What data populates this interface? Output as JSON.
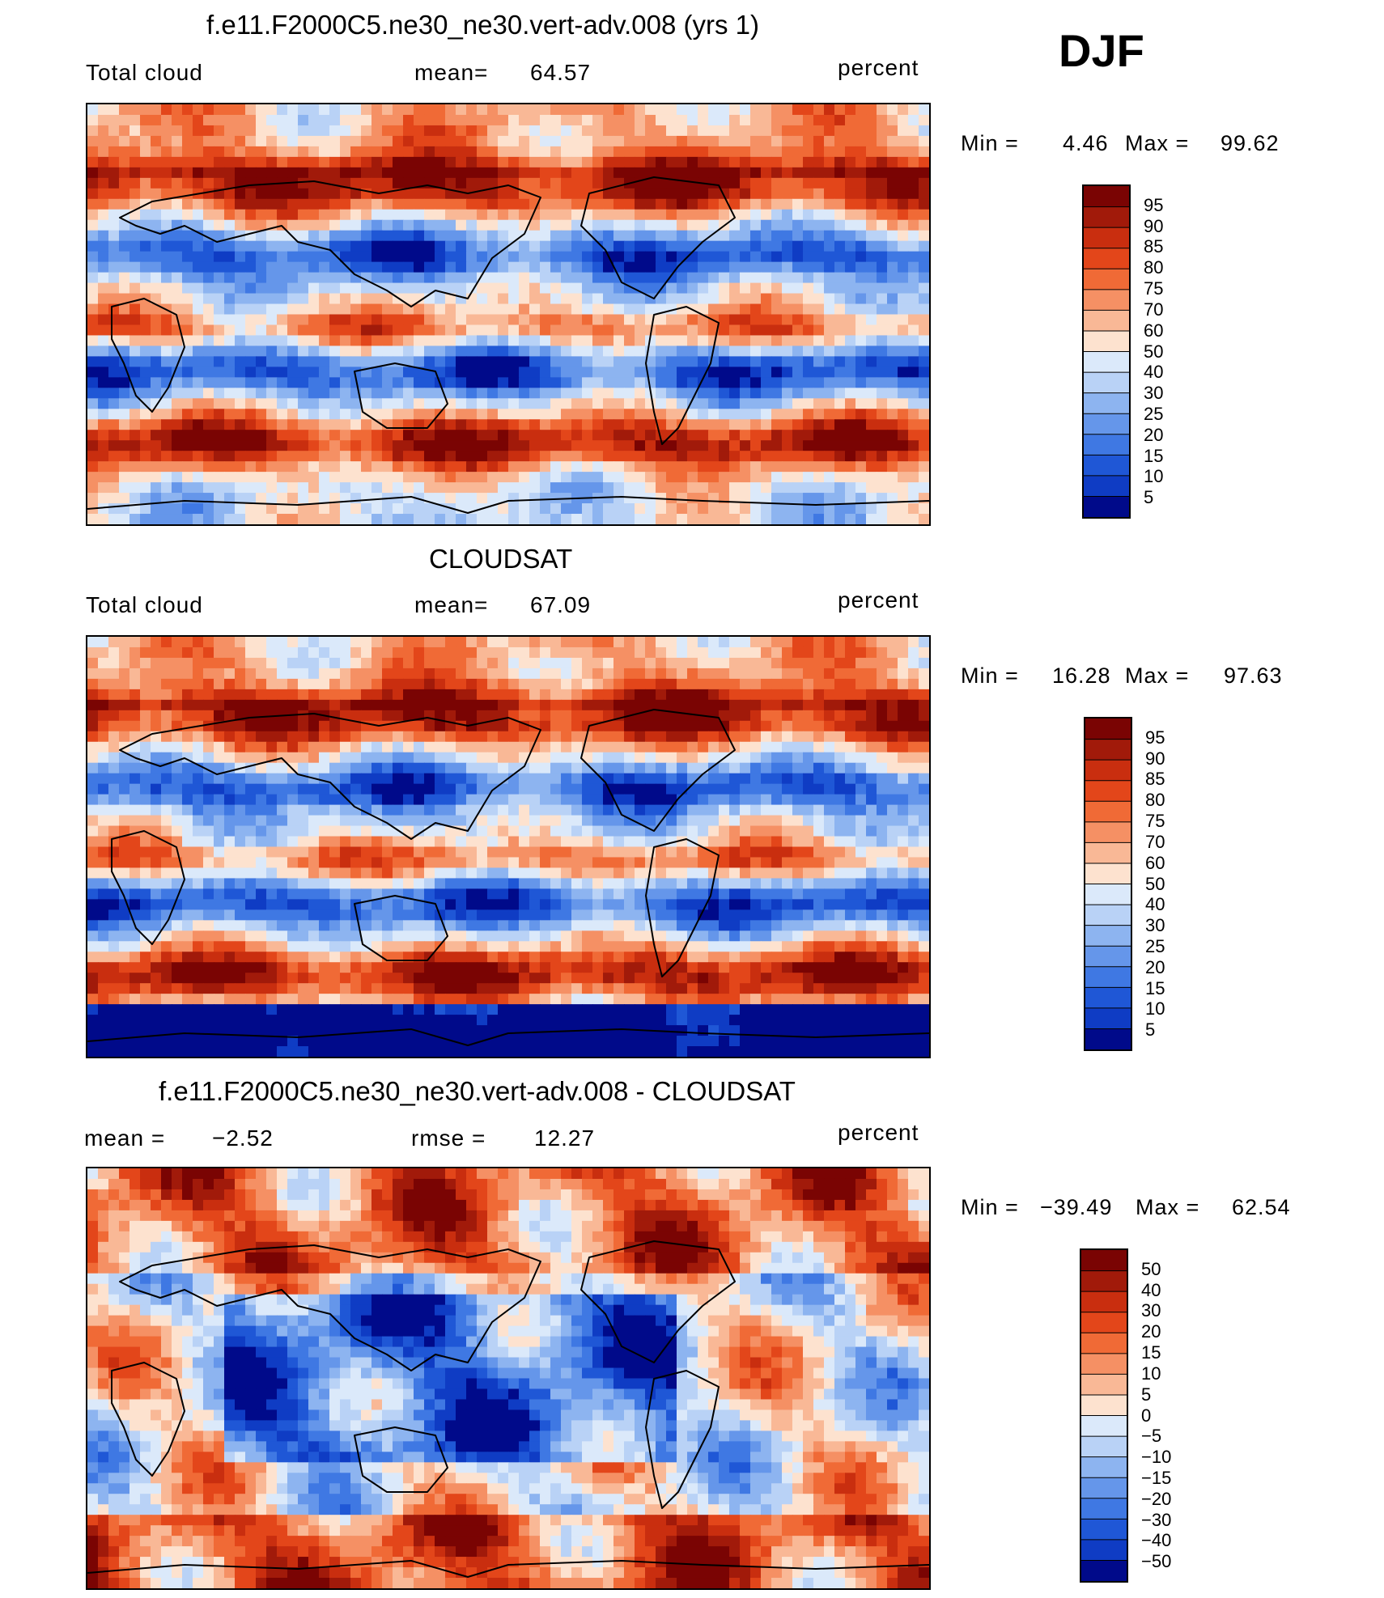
{
  "season": "DJF",
  "colors": {
    "warm": [
      "#7a0403",
      "#a11a0a",
      "#c92e0f",
      "#e3461a",
      "#f06a36",
      "#f59064",
      "#f9b896",
      "#fde2cf"
    ],
    "cool": [
      "#dbe9fa",
      "#b9d2f6",
      "#8db4f0",
      "#6596ea",
      "#3f78e3",
      "#1f57d6",
      "#0f3cc4",
      "#0820a8",
      "#000a8a"
    ]
  },
  "chart_data": [
    {
      "type": "heatmap",
      "panel": "model",
      "title": "f.e11.F2000C5.ne30_ne30.vert-adv.008 (yrs 1)",
      "variable": "Total cloud",
      "mean_label": "mean=",
      "mean": "64.57",
      "units": "percent",
      "min_label": "Min =",
      "min": "4.46",
      "max_label": "Max =",
      "max": "99.62",
      "colorbar_ticks": [
        "95",
        "90",
        "85",
        "80",
        "75",
        "70",
        "60",
        "50",
        "40",
        "30",
        "25",
        "20",
        "15",
        "10",
        "5"
      ],
      "colorbar_palette": [
        "#7a0403",
        "#a11a0a",
        "#c92e0f",
        "#e3461a",
        "#f06a36",
        "#f59064",
        "#f9b896",
        "#fde2cf",
        "#dbe9fa",
        "#b9d2f6",
        "#8db4f0",
        "#6596ea",
        "#3f78e3",
        "#1f57d6",
        "#0f3cc4",
        "#000a8a"
      ]
    },
    {
      "type": "heatmap",
      "panel": "obs",
      "title": "CLOUDSAT",
      "variable": "Total cloud",
      "mean_label": "mean=",
      "mean": "67.09",
      "units": "percent",
      "min_label": "Min =",
      "min": "16.28",
      "max_label": "Max =",
      "max": "97.63",
      "colorbar_ticks": [
        "95",
        "90",
        "85",
        "80",
        "75",
        "70",
        "60",
        "50",
        "40",
        "30",
        "25",
        "20",
        "15",
        "10",
        "5"
      ],
      "colorbar_palette": [
        "#7a0403",
        "#a11a0a",
        "#c92e0f",
        "#e3461a",
        "#f06a36",
        "#f59064",
        "#f9b896",
        "#fde2cf",
        "#dbe9fa",
        "#b9d2f6",
        "#8db4f0",
        "#6596ea",
        "#3f78e3",
        "#1f57d6",
        "#0f3cc4",
        "#000a8a"
      ]
    },
    {
      "type": "heatmap",
      "panel": "diff",
      "title": "f.e11.F2000C5.ne30_ne30.vert-adv.008 - CLOUDSAT",
      "mean_label": "mean =",
      "mean": "−2.52",
      "rmse_label": "rmse =",
      "rmse": "12.27",
      "units": "percent",
      "min_label": "Min =",
      "min": "−39.49",
      "max_label": "Max =",
      "max": "62.54",
      "colorbar_ticks": [
        "50",
        "40",
        "30",
        "20",
        "15",
        "10",
        "5",
        "0",
        "−5",
        "−10",
        "−15",
        "−20",
        "−30",
        "−40",
        "−50"
      ],
      "colorbar_palette": [
        "#7a0403",
        "#a11a0a",
        "#c92e0f",
        "#e3461a",
        "#f06a36",
        "#f59064",
        "#f9b896",
        "#fde2cf",
        "#dbe9fa",
        "#b9d2f6",
        "#8db4f0",
        "#6596ea",
        "#3f78e3",
        "#1f57d6",
        "#0f3cc4",
        "#000a8a"
      ]
    }
  ]
}
